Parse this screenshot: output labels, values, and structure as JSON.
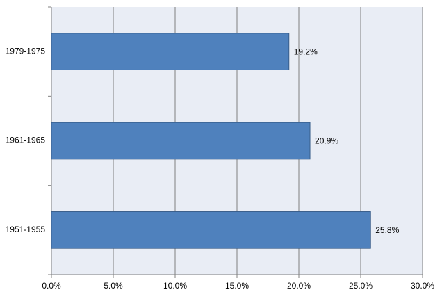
{
  "chart_data": {
    "type": "bar",
    "orientation": "horizontal",
    "categories": [
      "1979-1975",
      "1961-1965",
      "1951-1955"
    ],
    "values": [
      19.2,
      20.9,
      25.8
    ],
    "value_labels": [
      "19.2%",
      "20.9%",
      "25.8%"
    ],
    "color": "#4f81bd",
    "xlim": [
      0,
      30
    ],
    "xticks": [
      {
        "value": 0,
        "label": "0.0%"
      },
      {
        "value": 5,
        "label": "5.0%"
      },
      {
        "value": 10,
        "label": "10.0%"
      },
      {
        "value": 15,
        "label": "15.0%"
      },
      {
        "value": 20,
        "label": "20.0%"
      },
      {
        "value": 25,
        "label": "25.0%"
      },
      {
        "value": 30,
        "label": "30.0%"
      }
    ],
    "grid": true
  }
}
